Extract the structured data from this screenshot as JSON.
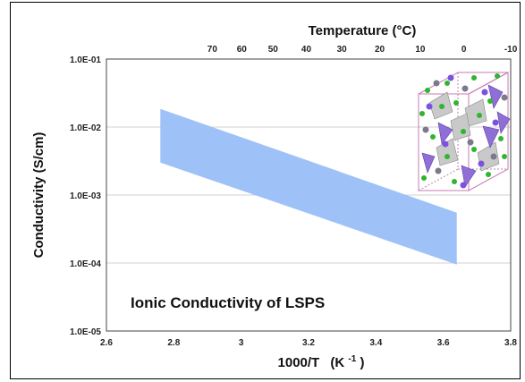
{
  "chart_data": {
    "type": "area",
    "title": "",
    "annotation": "Ionic Conductivity of LSPS",
    "xlabel": "1000/T",
    "xlabel_unit_base": "(K",
    "xlabel_unit_exp": "-1",
    "xlabel_unit_close": ")",
    "ylabel": "Conductivity (S/cm)",
    "x2label": "Temperature (°C)",
    "xlim": [
      2.6,
      3.8
    ],
    "ylim": [
      1e-05,
      0.1
    ],
    "yscale": "log",
    "grid": "horizontal",
    "x_ticks": [
      "2.6",
      "2.8",
      "3",
      "3.2",
      "3.4",
      "3.6",
      "3.8"
    ],
    "x_tick_values": [
      2.6,
      2.8,
      3.0,
      3.2,
      3.4,
      3.6,
      3.8
    ],
    "y_ticks": [
      "1.0E-05",
      "1.0E-04",
      "1.0E-03",
      "1.0E-02",
      "1.0E-01"
    ],
    "y_tick_values": [
      1e-05,
      0.0001,
      0.001,
      0.01,
      0.1
    ],
    "x2_ticks": [
      "70",
      "60",
      "50",
      "40",
      "30",
      "20",
      "10",
      "0",
      "-10"
    ],
    "x2_tick_values": [
      70,
      60,
      50,
      40,
      30,
      20,
      10,
      0,
      -10
    ],
    "band": {
      "x": [
        2.76,
        3.64
      ],
      "upper": [
        0.0185,
        0.00055
      ],
      "lower": [
        0.003,
        9.5e-05
      ],
      "color": "#9ec2f7"
    },
    "inset": "crystal-structure-illustration"
  }
}
